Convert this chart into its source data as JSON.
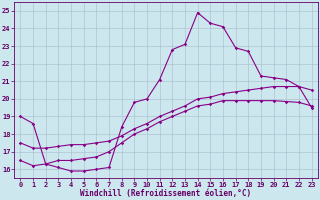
{
  "title": "",
  "xlabel": "Windchill (Refroidissement éolien,°C)",
  "ylabel": "",
  "bg_color": "#cce8ee",
  "grid_color": "#aabbcc",
  "line_color": "#880088",
  "spine_color": "#660066",
  "xlim": [
    -0.5,
    23.5
  ],
  "ylim": [
    15.5,
    25.5
  ],
  "xticks": [
    0,
    1,
    2,
    3,
    4,
    5,
    6,
    7,
    8,
    9,
    10,
    11,
    12,
    13,
    14,
    15,
    16,
    17,
    18,
    19,
    20,
    21,
    22,
    23
  ],
  "yticks": [
    16,
    17,
    18,
    19,
    20,
    21,
    22,
    23,
    24,
    25
  ],
  "line1_x": [
    0,
    1,
    2,
    3,
    4,
    5,
    6,
    7,
    8,
    9,
    10,
    11,
    12,
    13,
    14,
    15,
    16,
    17,
    18,
    19,
    20,
    21,
    22,
    23
  ],
  "line1_y": [
    19.0,
    18.6,
    16.3,
    16.1,
    15.9,
    15.9,
    16.0,
    16.1,
    18.4,
    19.8,
    20.0,
    21.1,
    22.8,
    23.1,
    24.9,
    24.3,
    24.1,
    22.9,
    22.7,
    21.3,
    21.2,
    21.1,
    20.7,
    19.5
  ],
  "line2_x": [
    0,
    1,
    2,
    3,
    4,
    5,
    6,
    7,
    8,
    9,
    10,
    11,
    12,
    13,
    14,
    15,
    16,
    17,
    18,
    19,
    20,
    21,
    22,
    23
  ],
  "line2_y": [
    16.5,
    16.2,
    16.3,
    16.5,
    16.5,
    16.6,
    16.7,
    17.0,
    17.5,
    18.0,
    18.3,
    18.7,
    19.0,
    19.3,
    19.6,
    19.7,
    19.9,
    19.9,
    19.9,
    19.9,
    19.9,
    19.85,
    19.8,
    19.6
  ],
  "line3_x": [
    0,
    1,
    2,
    3,
    4,
    5,
    6,
    7,
    8,
    9,
    10,
    11,
    12,
    13,
    14,
    15,
    16,
    17,
    18,
    19,
    20,
    21,
    22,
    23
  ],
  "line3_y": [
    17.5,
    17.2,
    17.2,
    17.3,
    17.4,
    17.4,
    17.5,
    17.6,
    17.9,
    18.3,
    18.6,
    19.0,
    19.3,
    19.6,
    20.0,
    20.1,
    20.3,
    20.4,
    20.5,
    20.6,
    20.7,
    20.7,
    20.7,
    20.5
  ],
  "tick_fontsize": 5.0,
  "xlabel_fontsize": 5.5,
  "marker_size": 1.8,
  "line_width": 0.8
}
